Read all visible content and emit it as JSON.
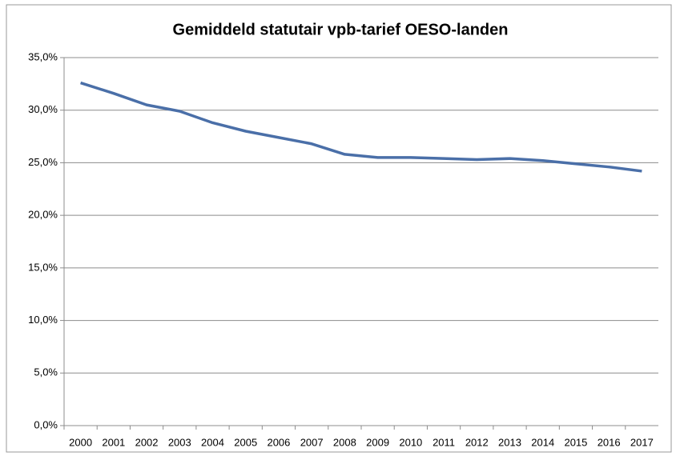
{
  "chart_data": {
    "type": "line",
    "title": "Gemiddeld statutair vpb-tarief OESO-landen",
    "categories": [
      "2000",
      "2001",
      "2002",
      "2003",
      "2004",
      "2005",
      "2006",
      "2007",
      "2008",
      "2009",
      "2010",
      "2011",
      "2012",
      "2013",
      "2014",
      "2015",
      "2016",
      "2017"
    ],
    "series": [
      {
        "name": "vpb-tarief",
        "color": "#4a6fa8",
        "values": [
          32.6,
          31.6,
          30.5,
          29.9,
          28.8,
          28.0,
          27.4,
          26.8,
          25.8,
          25.5,
          25.5,
          25.4,
          25.3,
          25.4,
          25.2,
          24.9,
          24.6,
          24.2
        ]
      }
    ],
    "ylim": [
      0,
      35
    ],
    "yticks": [
      {
        "value": 0,
        "label": "0,0%"
      },
      {
        "value": 5,
        "label": "5,0%"
      },
      {
        "value": 10,
        "label": "10,0%"
      },
      {
        "value": 15,
        "label": "15,0%"
      },
      {
        "value": 20,
        "label": "20,0%"
      },
      {
        "value": 25,
        "label": "25,0%"
      },
      {
        "value": 30,
        "label": "30,0%"
      },
      {
        "value": 35,
        "label": "35,0%"
      }
    ],
    "grid": true
  }
}
